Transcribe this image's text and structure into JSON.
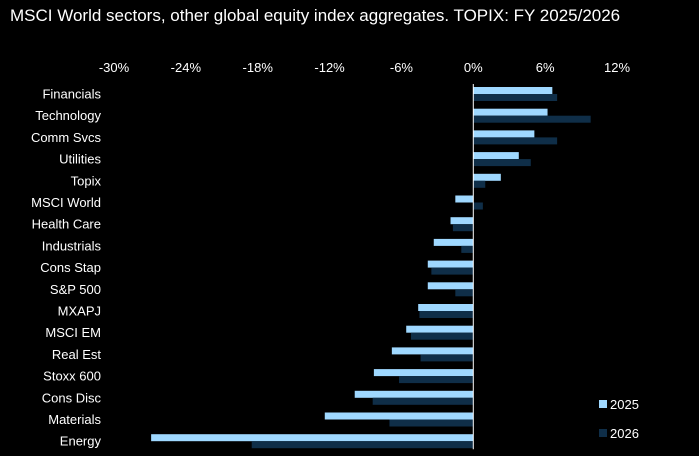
{
  "chart_data": {
    "type": "bar",
    "orientation": "horizontal",
    "title": "MSCI World sectors, other global equity index aggregates. TOPIX: FY 2025/2026",
    "xlim": [
      -30,
      12
    ],
    "xticks": [
      "-30%",
      "-24%",
      "-18%",
      "-12%",
      "-6%",
      "0%",
      "6%",
      "12%"
    ],
    "xtick_values": [
      -30,
      -24,
      -18,
      -12,
      -6,
      0,
      6,
      12
    ],
    "x_axis_position": "top",
    "grid": false,
    "legend_position": "bottom-right",
    "categories": [
      "Financials",
      "Technology",
      "Comm Svcs",
      "Utilities",
      "Topix",
      "MSCI World",
      "Health Care",
      "Industrials",
      "Cons Stap",
      "S&P 500",
      "MXAPJ",
      "MSCI EM",
      "Real Est",
      "Stoxx 600",
      "Cons Disc",
      "Materials",
      "Energy"
    ],
    "series": [
      {
        "name": "2025",
        "color": "#9fd8ff",
        "values": [
          6.6,
          6.2,
          5.1,
          3.8,
          2.3,
          -1.5,
          -1.9,
          -3.3,
          -3.8,
          -3.8,
          -4.6,
          -5.6,
          -6.8,
          -8.3,
          -9.9,
          -12.4,
          -26.9
        ]
      },
      {
        "name": "2026",
        "color": "#0f2e48",
        "values": [
          7.0,
          9.8,
          7.0,
          4.8,
          1.0,
          0.8,
          -1.7,
          -1.0,
          -3.5,
          -1.5,
          -4.5,
          -5.2,
          -4.4,
          -6.2,
          -8.4,
          -7.0,
          -18.5
        ]
      }
    ]
  }
}
